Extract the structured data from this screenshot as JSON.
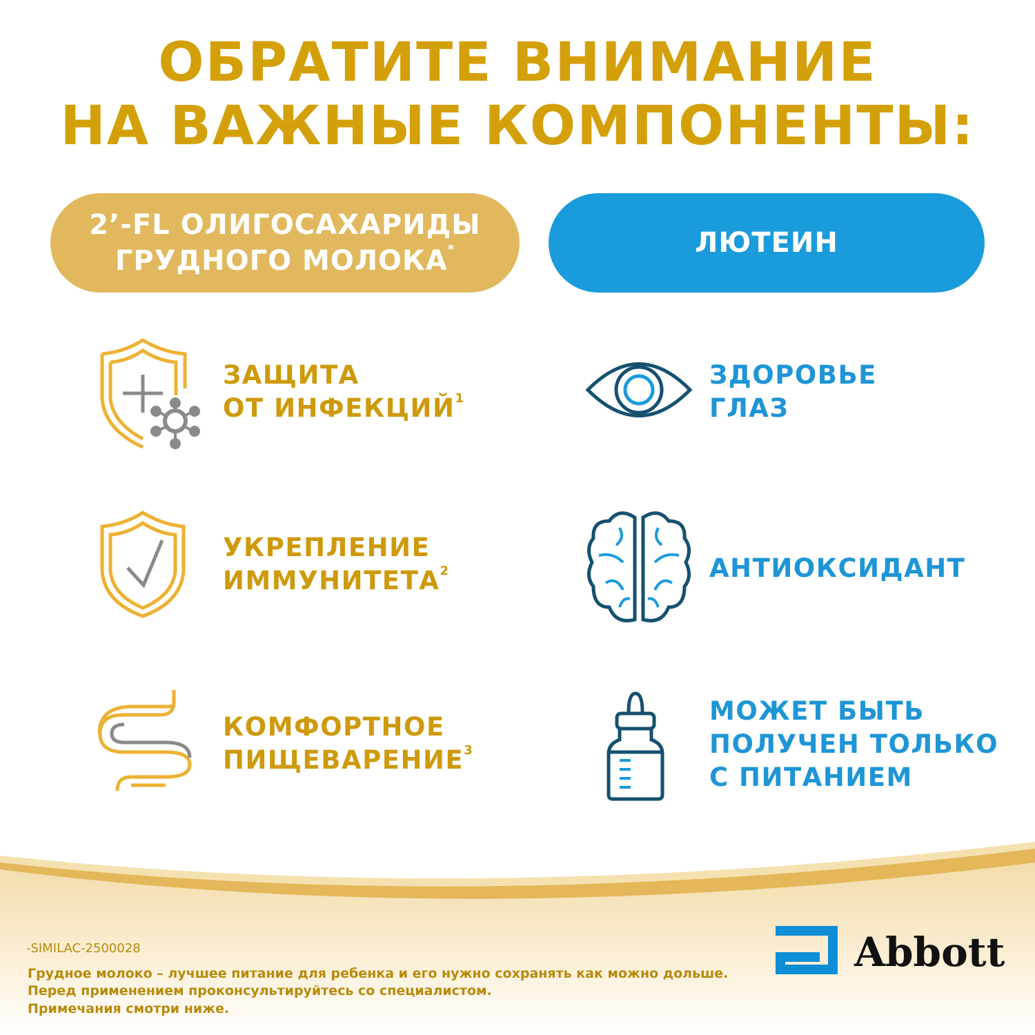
{
  "title": {
    "line1": "ОБРАТИТЕ ВНИМАНИЕ",
    "line2": "НА ВАЖНЫЕ КОМПОНЕНТЫ:"
  },
  "pills": {
    "left": {
      "line1": "2’-FL ОЛИГОСАХАРИДЫ",
      "line2": "ГРУДНОГО МОЛОКА",
      "mark": "*"
    },
    "right": {
      "label": "ЛЮТЕИН"
    }
  },
  "features_left": [
    {
      "icon": "shield-plus-virus-icon",
      "line1": "ЗАЩИТА",
      "line2": "ОТ ИНФЕКЦИЙ",
      "note": "1"
    },
    {
      "icon": "shield-check-icon",
      "line1": "УКРЕПЛЕНИЕ",
      "line2": "ИММУНИТЕТА",
      "note": "2"
    },
    {
      "icon": "intestine-icon",
      "line1": "КОМФОРТНОЕ",
      "line2": "ПИЩЕВАРЕНИЕ",
      "note": "3"
    }
  ],
  "features_right": [
    {
      "icon": "eye-icon",
      "line1": "ЗДОРОВЬЕ",
      "line2": "ГЛАЗ"
    },
    {
      "icon": "brain-icon",
      "line1": "АНТИОКСИДАНТ"
    },
    {
      "icon": "baby-bottle-icon",
      "line1": "МОЖЕТ БЫТЬ",
      "line2": "ПОЛУЧЕН ТОЛЬКО",
      "line3": "С ПИТАНИЕМ"
    }
  ],
  "footer": {
    "code": "-SIMILAC-2500028",
    "line1": "Грудное молоко – лучшее питание для ребенка и его нужно сохранять как можно дольше.",
    "line2": "Перед применением проконсультируйтесь со специалистом.",
    "line3": "Примечания смотри ниже."
  },
  "brand": {
    "name": "Abbott",
    "color": "#0E8ED6"
  },
  "colors": {
    "gold": "#D4A00A",
    "gold_pill": "#E1B85E",
    "blue": "#1A9BDB",
    "navy_icon": "#15506F",
    "gray_icon": "#8A8A8A"
  }
}
